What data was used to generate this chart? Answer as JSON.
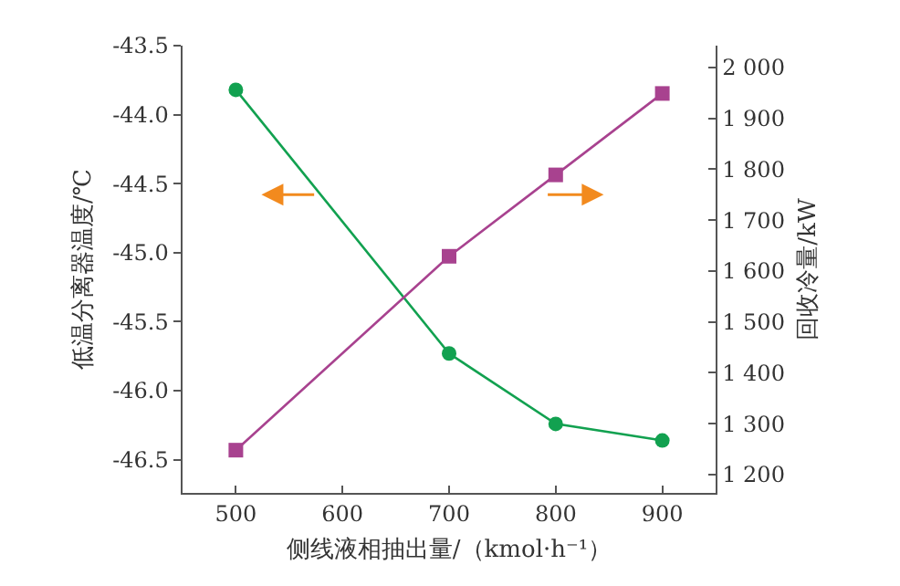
{
  "chart_data": {
    "type": "line",
    "xlabel": "侧线液相抽出量/（kmol·h⁻¹）",
    "ylabel": "低温分离器温度/℃",
    "y2label": "回收冷量/kW",
    "x": [
      500,
      700,
      800,
      900
    ],
    "series": [
      {
        "color": "#12a150",
        "marker": "circle",
        "values": [
          -43.82,
          -45.73,
          -46.24,
          -46.36
        ]
      },
      {
        "color": "#a8428f",
        "marker": "square",
        "axis": "y2",
        "values": [
          1248,
          1629,
          1789,
          1949
        ]
      }
    ],
    "xlim": [
      450,
      950
    ],
    "xticks": [
      500,
      600,
      700,
      800,
      900
    ],
    "ylim": [
      -46.74,
      -43.5
    ],
    "yticks": [
      -43.5,
      {
        "value": -44,
        "label": "-44.0"
      },
      -44.5,
      {
        "value": -45,
        "label": "-45.0"
      },
      -45.5,
      {
        "value": -46,
        "label": "-46.0"
      },
      -46.5
    ],
    "y2lim": [
      1164,
      2043
    ],
    "y2ticks": [
      {
        "value": 1200,
        "label": "1 200"
      },
      {
        "value": 1300,
        "label": "1 300"
      },
      {
        "value": 1400,
        "label": "1 400"
      },
      {
        "value": 1500,
        "label": "1 500"
      },
      {
        "value": 1600,
        "label": "1 600"
      },
      {
        "value": 1700,
        "label": "1 700"
      },
      {
        "value": 1800,
        "label": "1 800"
      },
      {
        "value": 1900,
        "label": "1 900"
      },
      {
        "value": 2000,
        "label": "2 000"
      }
    ],
    "line_style": "solid"
  }
}
